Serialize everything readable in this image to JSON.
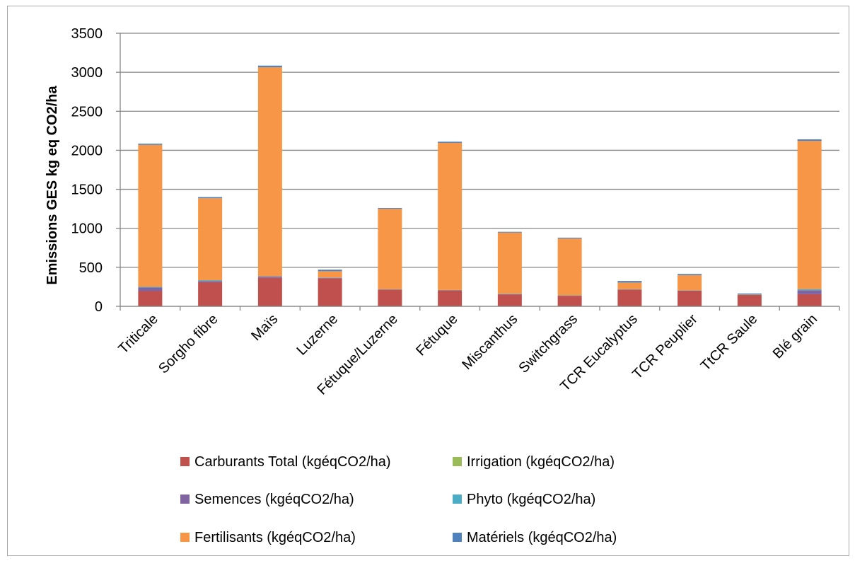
{
  "chart_data": {
    "type": "bar",
    "stacked": true,
    "title": "",
    "xlabel": "",
    "ylabel": "Emissions GES kg eq CO2/ha",
    "ylim": [
      0,
      3500
    ],
    "yticks": [
      0,
      500,
      1000,
      1500,
      2000,
      2500,
      3000,
      3500
    ],
    "grid": true,
    "legend_position": "bottom",
    "categories": [
      "Triticale",
      "Sorgho fibre",
      "Maïs",
      "Luzerne",
      "Fétuque/Luzerne",
      "Fétuque",
      "Miscanthus",
      "Switchgrass",
      "TCR Eucalyptus",
      "TCR Peuplier",
      "TtCR Saule",
      "Blé grain"
    ],
    "series": [
      {
        "name": "Carburants Total (kgéqCO2/ha)",
        "color": "#c0504d",
        "values": [
          195,
          310,
          365,
          360,
          215,
          205,
          150,
          135,
          215,
          200,
          145,
          155
        ]
      },
      {
        "name": "Irrigation (kgéqCO2/ha)",
        "color": "#9bbb59",
        "values": [
          0,
          0,
          0,
          0,
          0,
          0,
          0,
          0,
          0,
          0,
          0,
          0
        ]
      },
      {
        "name": "Semences (kgéqCO2/ha)",
        "color": "#8064a2",
        "values": [
          45,
          15,
          15,
          5,
          0,
          0,
          5,
          0,
          0,
          0,
          0,
          50
        ]
      },
      {
        "name": "Phyto (kgéqCO2/ha)",
        "color": "#4bacc6",
        "values": [
          10,
          10,
          5,
          5,
          5,
          5,
          5,
          5,
          5,
          5,
          5,
          15
        ]
      },
      {
        "name": "Fertilisants (kgéqCO2/ha)",
        "color": "#f79646",
        "values": [
          1820,
          1050,
          2680,
          80,
          1030,
          1885,
          785,
          730,
          85,
          195,
          5,
          1900
        ]
      },
      {
        "name": "Matériels (kgéqCO2/ha)",
        "color": "#4f81bd",
        "values": [
          15,
          15,
          20,
          20,
          10,
          15,
          10,
          10,
          20,
          15,
          10,
          20
        ]
      }
    ]
  }
}
